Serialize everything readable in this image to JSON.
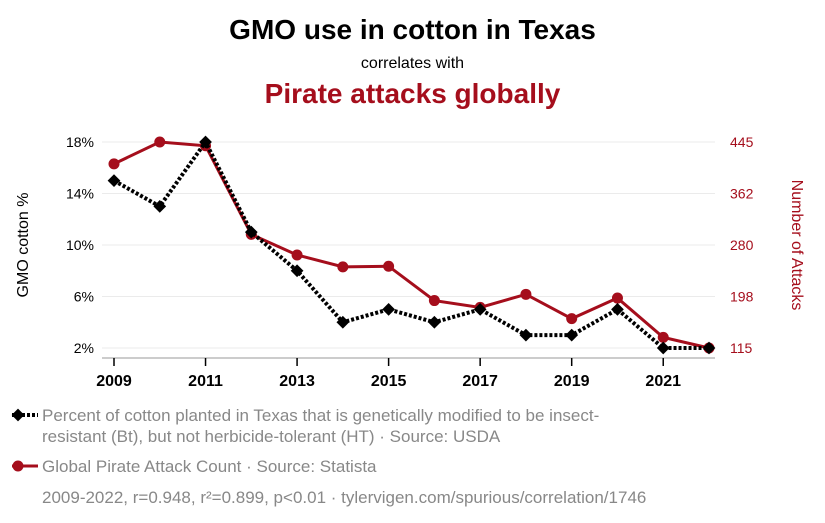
{
  "header": {
    "title": "GMO use in cotton in Texas",
    "subtitle": "correlates with",
    "title2": "Pirate attacks globally"
  },
  "chart_data": {
    "type": "line",
    "x": [
      2009,
      2010,
      2011,
      2012,
      2013,
      2014,
      2015,
      2016,
      2017,
      2018,
      2019,
      2020,
      2021,
      2022
    ],
    "x_ticks": [
      "2009",
      "2011",
      "2013",
      "2015",
      "2017",
      "2019",
      "2021"
    ],
    "ylabel": "GMO cotton %",
    "y2label": "Number of Attacks",
    "ylim": [
      2,
      18
    ],
    "y2lim": [
      115,
      445
    ],
    "y_ticks": [
      "2%",
      "6%",
      "10%",
      "14%",
      "18%"
    ],
    "y2_ticks": [
      "115",
      "198",
      "280",
      "362",
      "445"
    ],
    "grid": true,
    "series": [
      {
        "axis": "left",
        "color": "#000000",
        "style": "dotted",
        "marker": "diamond",
        "values": [
          15,
          13,
          18,
          11,
          8,
          4,
          5,
          4,
          5,
          3,
          3,
          5,
          2,
          2
        ]
      },
      {
        "axis": "right",
        "color": "#a50e1c",
        "style": "solid",
        "marker": "circle",
        "values": [
          410,
          445,
          439,
          297,
          264,
          245,
          246,
          191,
          180,
          201,
          162,
          195,
          132,
          115
        ]
      }
    ]
  },
  "legend": {
    "series1": "Percent of cotton planted in Texas that is genetically modified to be insect-resistant (Bt), but not herbicide-tolerant (HT) · Source: USDA",
    "series2": "Global Pirate Attack Count · Source: Statista",
    "footer": "2009-2022, r=0.948, r²=0.899, p<0.01 · tylervigen.com/spurious/correlation/1746"
  }
}
